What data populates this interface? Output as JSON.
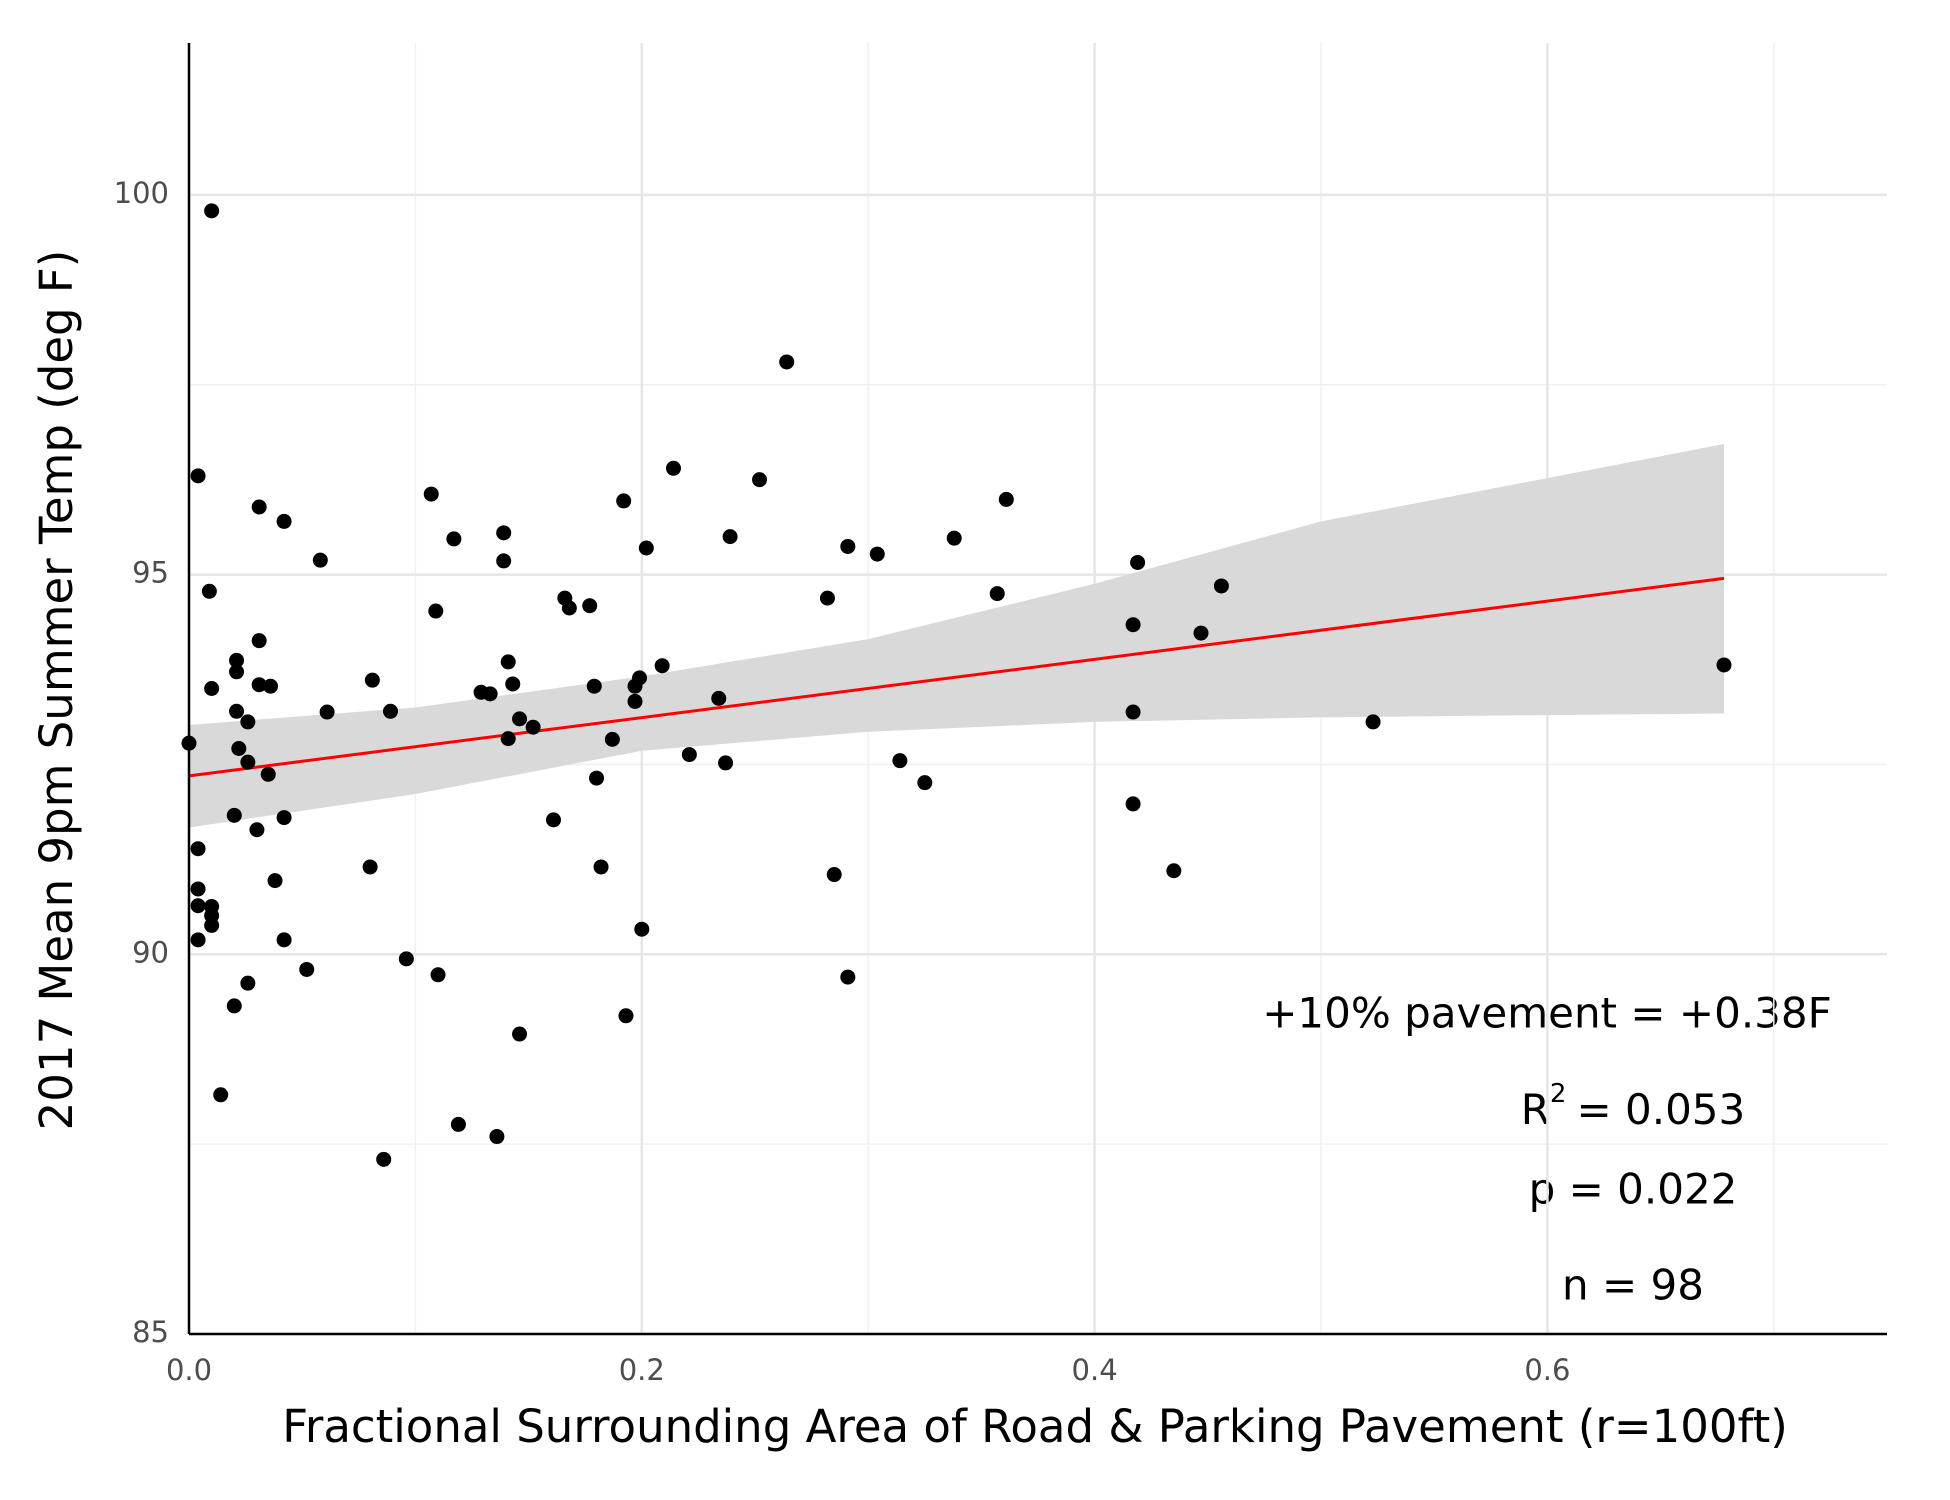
{
  "chart_data": {
    "type": "scatter",
    "x_label": "Fractional Surrounding Area of Road & Parking Pavement (r=100ft)",
    "y_label": "2017 Mean 9pm Summer Temp (deg F)",
    "xlim": [
      0,
      0.75
    ],
    "ylim": [
      85,
      102
    ],
    "xticks": [
      {
        "value": 0,
        "label": "0.0"
      },
      0.2,
      0.4,
      0.6
    ],
    "yticks": [
      85,
      90,
      95,
      100
    ],
    "x_minor_ticks": [
      0.1,
      0.3,
      0.5,
      0.7
    ],
    "y_minor_ticks": [
      87.5,
      92.5,
      97.5
    ],
    "grid": true,
    "series": [
      {
        "color": "#000000",
        "x": [
          0.0,
          0.01,
          0.004,
          0.009,
          0.01,
          0.021,
          0.021,
          0.021,
          0.022,
          0.026,
          0.026,
          0.031,
          0.031,
          0.031,
          0.036,
          0.035,
          0.03,
          0.02,
          0.042,
          0.042,
          0.058,
          0.061,
          0.004,
          0.004,
          0.004,
          0.01,
          0.01,
          0.01,
          0.004,
          0.038,
          0.042,
          0.052,
          0.026,
          0.02,
          0.014,
          0.08,
          0.081,
          0.089,
          0.096,
          0.086,
          0.107,
          0.109,
          0.11,
          0.117,
          0.119,
          0.129,
          0.133,
          0.136,
          0.139,
          0.139,
          0.141,
          0.143,
          0.141,
          0.146,
          0.152,
          0.146,
          0.161,
          0.166,
          0.168,
          0.177,
          0.179,
          0.18,
          0.182,
          0.187,
          0.192,
          0.193,
          0.197,
          0.197,
          0.199,
          0.202,
          0.2,
          0.209,
          0.214,
          0.221,
          0.234,
          0.239,
          0.237,
          0.252,
          0.264,
          0.282,
          0.285,
          0.291,
          0.291,
          0.304,
          0.314,
          0.325,
          0.338,
          0.357,
          0.361,
          0.417,
          0.419,
          0.417,
          0.417,
          0.435,
          0.447,
          0.456,
          0.523,
          0.678
        ],
        "values": [
          92.78,
          99.79,
          96.3,
          94.78,
          93.5,
          93.87,
          93.72,
          93.2,
          92.71,
          93.06,
          92.53,
          95.89,
          94.13,
          93.55,
          93.53,
          92.37,
          91.64,
          91.83,
          91.8,
          95.7,
          95.19,
          93.19,
          91.39,
          90.86,
          90.64,
          90.63,
          90.51,
          90.38,
          90.19,
          90.97,
          90.19,
          89.8,
          89.62,
          89.32,
          88.15,
          91.15,
          93.61,
          93.2,
          89.94,
          87.3,
          96.06,
          94.52,
          89.73,
          95.47,
          87.76,
          93.45,
          93.43,
          87.6,
          95.55,
          95.18,
          93.85,
          93.56,
          92.84,
          93.1,
          92.99,
          88.95,
          91.77,
          94.69,
          94.56,
          94.59,
          93.53,
          92.32,
          91.15,
          92.83,
          95.97,
          89.19,
          93.53,
          93.33,
          93.64,
          95.35,
          90.33,
          93.8,
          96.4,
          92.63,
          93.37,
          95.5,
          92.52,
          96.25,
          97.8,
          94.69,
          91.05,
          95.37,
          89.7,
          95.27,
          92.55,
          92.26,
          95.48,
          94.75,
          95.99,
          94.34,
          95.16,
          93.19,
          91.98,
          91.1,
          94.23,
          94.85,
          93.06,
          93.81
        ]
      }
    ],
    "fit": {
      "color": "#ff0000",
      "x": [
        0,
        0.678
      ],
      "values": [
        92.35,
        94.95
      ]
    },
    "band": {
      "color": "#d9d9d9",
      "x": [
        0,
        0.1,
        0.2,
        0.3,
        0.4,
        0.5,
        0.6,
        0.678
      ],
      "upper": [
        93.02,
        93.25,
        93.66,
        94.15,
        94.88,
        95.7,
        96.27,
        96.72
      ],
      "lower": [
        91.67,
        92.11,
        92.68,
        92.93,
        93.06,
        93.12,
        93.15,
        93.17
      ]
    },
    "annotations": [
      "+10% pavement = +0.38F",
      "p = 0.022",
      "n = 98"
    ],
    "r_squared": {
      "base": "R",
      "sup": "2",
      "rest": "= 0.053"
    }
  }
}
